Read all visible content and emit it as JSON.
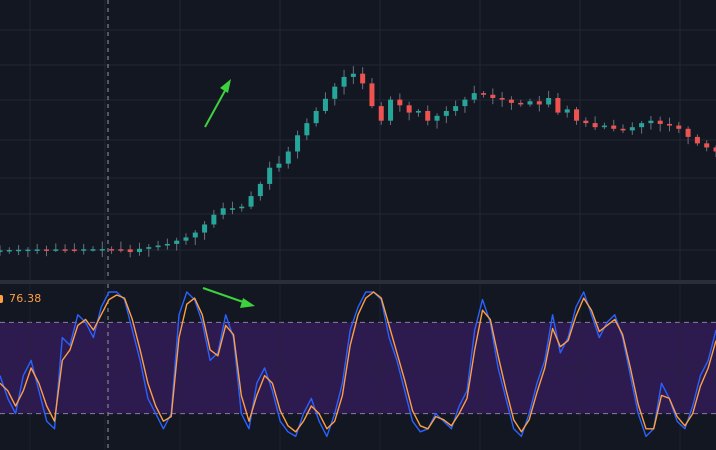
{
  "colors": {
    "background": "#131722",
    "grid": "#232735",
    "candle_up": "#26a69a",
    "candle_down": "#ef5350",
    "wick": "#6a7180",
    "fast_line": "#2962ff",
    "slow_line": "#ff9f43",
    "band_fill": "#2e1a52",
    "band_border": "#8a7aa8",
    "annotation_arrow": "#3dd23d",
    "crosshair": "#9598a1"
  },
  "oscillator": {
    "readout_value": "76.38"
  },
  "chart_data": [
    {
      "type": "candlestick",
      "title": "",
      "xlabel": "",
      "ylabel": "",
      "ylim": [
        0,
        280
      ],
      "grid": true,
      "closes": [
        18,
        18.5,
        18.8,
        19,
        19.2,
        19.1,
        19.3,
        19.2,
        19,
        19.4,
        19.5,
        19.6,
        19.4,
        19.3,
        16,
        20,
        22,
        24,
        26,
        30,
        34,
        40,
        50,
        62,
        70,
        70,
        72,
        85,
        100,
        120,
        125,
        140,
        160,
        175,
        190,
        205,
        220,
        232,
        236,
        224,
        196,
        178,
        204,
        197,
        188,
        190,
        178,
        184,
        190,
        196,
        204,
        212,
        210,
        206,
        204,
        200,
        198,
        202,
        198,
        206,
        188,
        192,
        178,
        175,
        170,
        172,
        168,
        166,
        170,
        175,
        178,
        174,
        172,
        168,
        158,
        150,
        145,
        140
      ],
      "annotations": [
        {
          "type": "arrow",
          "direction": "up",
          "label": ""
        }
      ]
    },
    {
      "type": "line",
      "title": "",
      "ylim": [
        0,
        100
      ],
      "bands": [
        20,
        80
      ],
      "grid": true,
      "series": [
        {
          "values": [
            45,
            30,
            20,
            45,
            55,
            35,
            15,
            10,
            70,
            65,
            85,
            80,
            70,
            90,
            100,
            100,
            95,
            75,
            55,
            30,
            20,
            10,
            20,
            85,
            100,
            95,
            80,
            55,
            60,
            85,
            70,
            20,
            10,
            40,
            50,
            35,
            15,
            8,
            5,
            20,
            30,
            15,
            5,
            20,
            40,
            75,
            90,
            100,
            100,
            95,
            70,
            55,
            35,
            15,
            8,
            10,
            20,
            15,
            10,
            25,
            35,
            75,
            95,
            80,
            50,
            30,
            10,
            5,
            20,
            40,
            55,
            85,
            60,
            70,
            90,
            100,
            85,
            70,
            80,
            85,
            70,
            45,
            20,
            5,
            10,
            40,
            30,
            15,
            10,
            25,
            45,
            55,
            75
          ]
        },
        {
          "values": [
            40,
            35,
            25,
            35,
            50,
            40,
            25,
            15,
            55,
            62,
            78,
            82,
            75,
            85,
            95,
            98,
            96,
            82,
            62,
            40,
            25,
            15,
            18,
            70,
            92,
            96,
            85,
            62,
            58,
            78,
            72,
            32,
            15,
            32,
            45,
            40,
            22,
            12,
            8,
            15,
            25,
            20,
            10,
            15,
            32,
            65,
            85,
            96,
            100,
            96,
            78,
            60,
            42,
            22,
            12,
            10,
            18,
            16,
            12,
            20,
            30,
            62,
            88,
            82,
            58,
            36,
            16,
            8,
            16,
            34,
            50,
            76,
            64,
            68,
            84,
            96,
            88,
            74,
            78,
            82,
            72,
            50,
            26,
            10,
            10,
            32,
            30,
            18,
            12,
            20,
            38,
            50,
            68
          ]
        }
      ],
      "annotations": [
        {
          "type": "arrow",
          "direction": "down-right",
          "label": ""
        }
      ]
    }
  ]
}
